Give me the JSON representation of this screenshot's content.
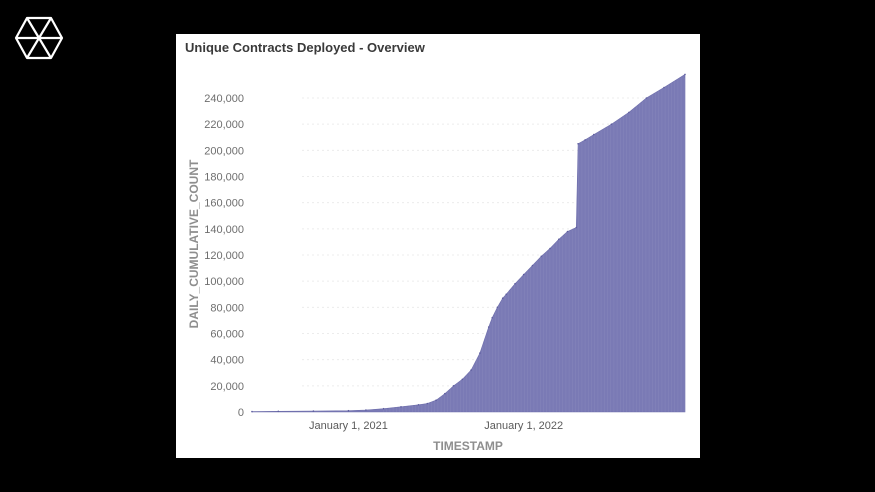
{
  "brand": {
    "logo_icon": "hexagon-cube-logo-icon"
  },
  "chart_data": {
    "type": "area",
    "title": "Unique Contracts Deployed - Overview",
    "xlabel": "TIMESTAMP",
    "ylabel": "DAILY_CUMULATIVE_COUNT",
    "ylim": [
      0,
      240000
    ],
    "yticks": [
      0,
      20000,
      40000,
      60000,
      80000,
      100000,
      120000,
      140000,
      160000,
      180000,
      200000,
      220000,
      240000
    ],
    "ytick_labels": [
      "0",
      "20,000",
      "40,000",
      "60,000",
      "80,000",
      "100,000",
      "120,000",
      "140,000",
      "160,000",
      "180,000",
      "200,000",
      "220,000",
      "240,000"
    ],
    "xlim": [
      2020.45,
      2022.92
    ],
    "xticks": [
      2021.0,
      2022.0
    ],
    "xtick_labels": [
      "January 1, 2021",
      "January 1, 2022"
    ],
    "color": "#7a7ab5",
    "series": [
      {
        "name": "DAILY_CUMULATIVE_COUNT",
        "x": [
          2020.45,
          2020.6,
          2020.8,
          2021.0,
          2021.1,
          2021.2,
          2021.3,
          2021.4,
          2021.45,
          2021.5,
          2021.55,
          2021.6,
          2021.65,
          2021.7,
          2021.75,
          2021.8,
          2021.82,
          2021.85,
          2021.88,
          2021.9,
          2021.95,
          2022.0,
          2022.05,
          2022.1,
          2022.15,
          2022.2,
          2022.25,
          2022.3,
          2022.31,
          2022.35,
          2022.4,
          2022.5,
          2022.6,
          2022.7,
          2022.8,
          2022.92
        ],
        "values": [
          300,
          500,
          700,
          1000,
          1500,
          2500,
          4000,
          5500,
          6500,
          9000,
          14000,
          20000,
          25000,
          32000,
          45000,
          65000,
          72000,
          80000,
          87000,
          90000,
          98000,
          105000,
          112000,
          119000,
          125000,
          132000,
          138000,
          141000,
          205000,
          208000,
          212000,
          220000,
          229000,
          240000,
          248000,
          258000
        ]
      }
    ]
  }
}
